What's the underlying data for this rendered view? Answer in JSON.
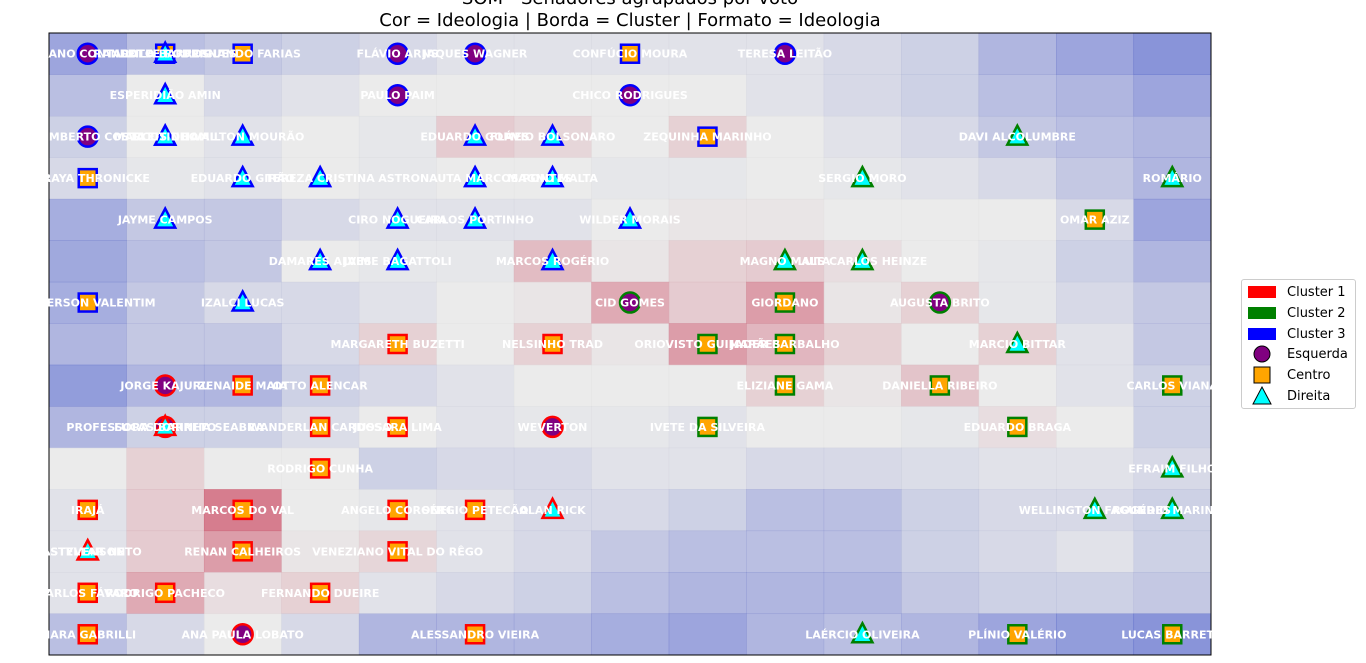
{
  "chart_data": {
    "type": "heatmap",
    "title_lines": [
      "SOM - Senadores agrupados por voto",
      "Cor = Ideologia | Borda = Cluster | Formato = Ideologia"
    ],
    "grid": {
      "cols": 15,
      "rows": 15
    },
    "heatmap_values": [
      [
        0.1,
        0.25,
        0.3,
        0.35,
        0.4,
        0.45,
        0.45,
        0.45,
        0.45,
        0.45,
        0.4,
        0.35,
        0.2,
        0.1,
        0.0
      ],
      [
        0.25,
        0.5,
        0.4,
        0.45,
        0.5,
        0.5,
        0.5,
        0.5,
        0.5,
        0.45,
        0.4,
        0.35,
        0.25,
        0.2,
        0.1
      ],
      [
        0.35,
        0.5,
        0.45,
        0.5,
        0.48,
        0.62,
        0.58,
        0.5,
        0.6,
        0.5,
        0.45,
        0.4,
        0.3,
        0.25,
        0.2
      ],
      [
        0.4,
        0.48,
        0.45,
        0.5,
        0.48,
        0.5,
        0.5,
        0.48,
        0.48,
        0.5,
        0.48,
        0.45,
        0.4,
        0.3,
        0.2
      ],
      [
        0.15,
        0.3,
        0.3,
        0.4,
        0.45,
        0.45,
        0.45,
        0.5,
        0.52,
        0.52,
        0.5,
        0.5,
        0.5,
        0.4,
        0.1
      ],
      [
        0.12,
        0.25,
        0.3,
        0.5,
        0.48,
        0.48,
        0.68,
        0.52,
        0.6,
        0.62,
        0.55,
        0.5,
        0.48,
        0.35,
        0.2
      ],
      [
        0.15,
        0.3,
        0.4,
        0.4,
        0.45,
        0.5,
        0.52,
        0.75,
        0.62,
        0.8,
        0.52,
        0.6,
        0.48,
        0.4,
        0.3
      ],
      [
        0.2,
        0.3,
        0.3,
        0.4,
        0.6,
        0.5,
        0.6,
        0.52,
        0.8,
        0.7,
        0.6,
        0.5,
        0.6,
        0.45,
        0.3
      ],
      [
        0.05,
        0.2,
        0.2,
        0.35,
        0.4,
        0.45,
        0.5,
        0.5,
        0.5,
        0.6,
        0.52,
        0.65,
        0.5,
        0.45,
        0.35
      ],
      [
        0.2,
        0.35,
        0.35,
        0.42,
        0.5,
        0.45,
        0.48,
        0.48,
        0.45,
        0.5,
        0.5,
        0.48,
        0.55,
        0.5,
        0.35
      ],
      [
        0.5,
        0.6,
        0.5,
        0.5,
        0.35,
        0.4,
        0.4,
        0.45,
        0.45,
        0.4,
        0.4,
        0.42,
        0.45,
        0.45,
        0.4
      ],
      [
        0.45,
        0.62,
        0.92,
        0.5,
        0.48,
        0.45,
        0.4,
        0.4,
        0.35,
        0.25,
        0.25,
        0.35,
        0.4,
        0.4,
        0.35
      ],
      [
        0.45,
        0.62,
        0.8,
        0.52,
        0.58,
        0.45,
        0.4,
        0.3,
        0.25,
        0.25,
        0.25,
        0.35,
        0.4,
        0.45,
        0.35
      ],
      [
        0.45,
        0.75,
        0.55,
        0.6,
        0.45,
        0.4,
        0.35,
        0.25,
        0.2,
        0.2,
        0.2,
        0.3,
        0.35,
        0.35,
        0.3
      ],
      [
        0.25,
        0.4,
        0.5,
        0.4,
        0.2,
        0.2,
        0.2,
        0.15,
        0.1,
        0.2,
        0.25,
        0.2,
        0.1,
        0.05,
        0.0
      ]
    ],
    "senators": [
      {
        "name": "FABIANO CONTARATO",
        "col": 0,
        "row": 0,
        "ideology": "Esquerda",
        "cluster": 3
      },
      {
        "name": "RANDOLFE RODRIGUES",
        "col": 1,
        "row": 0,
        "ideology": "Centro",
        "cluster": 3
      },
      {
        "name": "LEILA BARROS",
        "col": 1,
        "row": 0,
        "ideology": "Direita",
        "cluster": 3
      },
      {
        "name": "FERNANDO FARIAS",
        "col": 2,
        "row": 0,
        "ideology": "Centro",
        "cluster": 3
      },
      {
        "name": "FLÁVIO ARNS",
        "col": 4,
        "row": 0,
        "ideology": "Esquerda",
        "cluster": 3
      },
      {
        "name": "JAQUES WAGNER",
        "col": 5,
        "row": 0,
        "ideology": "Esquerda",
        "cluster": 3
      },
      {
        "name": "CONFÚCIO MOURA",
        "col": 7,
        "row": 0,
        "ideology": "Centro",
        "cluster": 3
      },
      {
        "name": "TERESA LEITÃO",
        "col": 9,
        "row": 0,
        "ideology": "Esquerda",
        "cluster": 3
      },
      {
        "name": "ESPERIDIÃO AMIN",
        "col": 1,
        "row": 1,
        "ideology": "Direita",
        "cluster": 3
      },
      {
        "name": "PAULO PAIM",
        "col": 4,
        "row": 1,
        "ideology": "Esquerda",
        "cluster": 3
      },
      {
        "name": "CHICO RODRIGUES",
        "col": 7,
        "row": 1,
        "ideology": "Esquerda",
        "cluster": 3
      },
      {
        "name": "HUMBERTO COSTA",
        "col": 0,
        "row": 2,
        "ideology": "Esquerda",
        "cluster": 3
      },
      {
        "name": "CLEITINHO",
        "col": 1,
        "row": 2,
        "ideology": "Direita",
        "cluster": 3
      },
      {
        "name": "MARCOS DO VAL",
        "col": 1,
        "row": 2,
        "ideology": "Direita",
        "cluster": 3
      },
      {
        "name": "HAMILTON MOURÃO",
        "col": 2,
        "row": 2,
        "ideology": "Direita",
        "cluster": 3
      },
      {
        "name": "EDUARDO GOMES",
        "col": 5,
        "row": 2,
        "ideology": "Direita",
        "cluster": 3
      },
      {
        "name": "FLÁVIO BOLSONARO",
        "col": 6,
        "row": 2,
        "ideology": "Direita",
        "cluster": 3
      },
      {
        "name": "ZEQUINHA MARINHO",
        "col": 8,
        "row": 2,
        "ideology": "Centro",
        "cluster": 3
      },
      {
        "name": "DAVI ALCOLUMBRE",
        "col": 12,
        "row": 2,
        "ideology": "Direita",
        "cluster": 2
      },
      {
        "name": "SORAYA THRONICKE",
        "col": 0,
        "row": 3,
        "ideology": "Centro",
        "cluster": 3
      },
      {
        "name": "EDUARDO GIRÃO",
        "col": 2,
        "row": 3,
        "ideology": "Direita",
        "cluster": 3
      },
      {
        "name": "TEREZA CRISTINA",
        "col": 3,
        "row": 3,
        "ideology": "Direita",
        "cluster": 3
      },
      {
        "name": "ASTRONAUTA MARCOS PONTES",
        "col": 5,
        "row": 3,
        "ideology": "Direita",
        "cluster": 3
      },
      {
        "name": "MAGNO MALTA",
        "col": 6,
        "row": 3,
        "ideology": "Direita",
        "cluster": 3
      },
      {
        "name": "SERGIO MORO",
        "col": 10,
        "row": 3,
        "ideology": "Direita",
        "cluster": 2
      },
      {
        "name": "ROMÁRIO",
        "col": 14,
        "row": 3,
        "ideology": "Direita",
        "cluster": 2
      },
      {
        "name": "JAYME CAMPOS",
        "col": 1,
        "row": 4,
        "ideology": "Direita",
        "cluster": 3
      },
      {
        "name": "CIRO NOGUEIRA",
        "col": 4,
        "row": 4,
        "ideology": "Direita",
        "cluster": 3
      },
      {
        "name": "CARLOS PORTINHO",
        "col": 5,
        "row": 4,
        "ideology": "Direita",
        "cluster": 3
      },
      {
        "name": "WILDER MORAIS",
        "col": 7,
        "row": 4,
        "ideology": "Direita",
        "cluster": 3
      },
      {
        "name": "OMAR AZIZ",
        "col": 13,
        "row": 4,
        "ideology": "Centro",
        "cluster": 2
      },
      {
        "name": "DAMARES ALVES",
        "col": 3,
        "row": 5,
        "ideology": "Direita",
        "cluster": 3
      },
      {
        "name": "JAIME BAGATTOLI",
        "col": 4,
        "row": 5,
        "ideology": "Direita",
        "cluster": 3
      },
      {
        "name": "MARCOS ROGÉRIO",
        "col": 6,
        "row": 5,
        "ideology": "Direita",
        "cluster": 3
      },
      {
        "name": "MAGNO MALTA",
        "col": 9,
        "row": 5,
        "ideology": "Direita",
        "cluster": 2
      },
      {
        "name": "LUIS CARLOS HEINZE",
        "col": 10,
        "row": 5,
        "ideology": "Direita",
        "cluster": 2
      },
      {
        "name": "ANDERSON VALENTIM",
        "col": 0,
        "row": 6,
        "ideology": "Centro",
        "cluster": 3
      },
      {
        "name": "IZALCI LUCAS",
        "col": 2,
        "row": 6,
        "ideology": "Direita",
        "cluster": 3
      },
      {
        "name": "CID GOMES",
        "col": 7,
        "row": 6,
        "ideology": "Esquerda",
        "cluster": 2
      },
      {
        "name": "GIORDANO",
        "col": 9,
        "row": 6,
        "ideology": "Centro",
        "cluster": 2
      },
      {
        "name": "AUGUSTA BRITO",
        "col": 11,
        "row": 6,
        "ideology": "Esquerda",
        "cluster": 2
      },
      {
        "name": "MARGARETH BUZETTI",
        "col": 4,
        "row": 7,
        "ideology": "Centro",
        "cluster": 1
      },
      {
        "name": "NELSINHO TRAD",
        "col": 6,
        "row": 7,
        "ideology": "Centro",
        "cluster": 1
      },
      {
        "name": "ORIOVISTO GUIMARÃES",
        "col": 8,
        "row": 7,
        "ideology": "Centro",
        "cluster": 2
      },
      {
        "name": "JADER BARBALHO",
        "col": 9,
        "row": 7,
        "ideology": "Centro",
        "cluster": 2
      },
      {
        "name": "MARCIO BITTAR",
        "col": 12,
        "row": 7,
        "ideology": "Direita",
        "cluster": 2
      },
      {
        "name": "JORGE KAJURU",
        "col": 1,
        "row": 8,
        "ideology": "Esquerda",
        "cluster": 1
      },
      {
        "name": "ZENAIDE MAIA",
        "col": 2,
        "row": 8,
        "ideology": "Centro",
        "cluster": 1
      },
      {
        "name": "OTTO ALENCAR",
        "col": 3,
        "row": 8,
        "ideology": "Centro",
        "cluster": 1
      },
      {
        "name": "ELIZIANE GAMA",
        "col": 9,
        "row": 8,
        "ideology": "Centro",
        "cluster": 2
      },
      {
        "name": "DANIELLA RIBEIRO",
        "col": 11,
        "row": 8,
        "ideology": "Centro",
        "cluster": 2
      },
      {
        "name": "CARLOS VIANA",
        "col": 14,
        "row": 8,
        "ideology": "Centro",
        "cluster": 2
      },
      {
        "name": "PROFESSORA DORINHA SEABRA",
        "col": 1,
        "row": 9,
        "ideology": "Esquerda",
        "cluster": 1
      },
      {
        "name": "LUCAS BARRETO",
        "col": 1,
        "row": 9,
        "ideology": "Direita",
        "cluster": 1
      },
      {
        "name": "WANDERLAN CARDOSO",
        "col": 3,
        "row": 9,
        "ideology": "Centro",
        "cluster": 1
      },
      {
        "name": "JUSSARA LIMA",
        "col": 4,
        "row": 9,
        "ideology": "Centro",
        "cluster": 1
      },
      {
        "name": "WEVERTON",
        "col": 6,
        "row": 9,
        "ideology": "Esquerda",
        "cluster": 1
      },
      {
        "name": "IVETE DA SILVEIRA",
        "col": 8,
        "row": 9,
        "ideology": "Centro",
        "cluster": 2
      },
      {
        "name": "EDUARDO BRAGA",
        "col": 12,
        "row": 9,
        "ideology": "Centro",
        "cluster": 2
      },
      {
        "name": "RODRIGO CUNHA",
        "col": 3,
        "row": 10,
        "ideology": "Centro",
        "cluster": 1
      },
      {
        "name": "EFRAIM FILHO",
        "col": 14,
        "row": 10,
        "ideology": "Direita",
        "cluster": 2
      },
      {
        "name": "IRAJÁ",
        "col": 0,
        "row": 11,
        "ideology": "Centro",
        "cluster": 1
      },
      {
        "name": "MARCOS DO VAL",
        "col": 2,
        "row": 11,
        "ideology": "Centro",
        "cluster": 1
      },
      {
        "name": "ANGELO CORONEL",
        "col": 4,
        "row": 11,
        "ideology": "Centro",
        "cluster": 1
      },
      {
        "name": "SÉRGIO PETECÃO",
        "col": 5,
        "row": 11,
        "ideology": "Centro",
        "cluster": 1
      },
      {
        "name": "ALAN RICK",
        "col": 6,
        "row": 11,
        "ideology": "Direita",
        "cluster": 1
      },
      {
        "name": "WELLINGTON FAGUNDES",
        "col": 13,
        "row": 11,
        "ideology": "Direita",
        "cluster": 2
      },
      {
        "name": "ROGÉRIO MARINHO",
        "col": 14,
        "row": 11,
        "ideology": "Direita",
        "cluster": 2
      },
      {
        "name": "CASTELLAR NETO",
        "col": 0,
        "row": 12,
        "ideology": "Direita",
        "cluster": 1
      },
      {
        "name": "STYVENSON",
        "col": 0,
        "row": 12,
        "ideology": "Direita",
        "cluster": 1
      },
      {
        "name": "RENAN CALHEIROS",
        "col": 2,
        "row": 12,
        "ideology": "Centro",
        "cluster": 1
      },
      {
        "name": "VENEZIANO VITAL DO RÊGO",
        "col": 4,
        "row": 12,
        "ideology": "Centro",
        "cluster": 1
      },
      {
        "name": "CARLOS FÁVARO",
        "col": 0,
        "row": 13,
        "ideology": "Centro",
        "cluster": 1
      },
      {
        "name": "RODRIGO PACHECO",
        "col": 1,
        "row": 13,
        "ideology": "Centro",
        "cluster": 1
      },
      {
        "name": "FERNANDO DUEIRE",
        "col": 3,
        "row": 13,
        "ideology": "Centro",
        "cluster": 1
      },
      {
        "name": "MARA GABRILLI",
        "col": 0,
        "row": 14,
        "ideology": "Centro",
        "cluster": 1
      },
      {
        "name": "ANA PAULA LOBATO",
        "col": 2,
        "row": 14,
        "ideology": "Esquerda",
        "cluster": 1
      },
      {
        "name": "ALESSANDRO VIEIRA",
        "col": 5,
        "row": 14,
        "ideology": "Centro",
        "cluster": 1
      },
      {
        "name": "LAÉRCIO OLIVEIRA",
        "col": 10,
        "row": 14,
        "ideology": "Direita",
        "cluster": 2
      },
      {
        "name": "PLÍNIO VALÉRIO",
        "col": 12,
        "row": 14,
        "ideology": "Centro",
        "cluster": 2
      },
      {
        "name": "LUCAS BARRETO",
        "col": 14,
        "row": 14,
        "ideology": "Centro",
        "cluster": 2
      }
    ],
    "legend": {
      "clusters": [
        {
          "label": "Cluster 1",
          "color": "#ff0000"
        },
        {
          "label": "Cluster 2",
          "color": "#008000"
        },
        {
          "label": "Cluster 3",
          "color": "#0000ff"
        }
      ],
      "ideologies": [
        {
          "label": "Esquerda",
          "color": "#800080",
          "shape": "circle"
        },
        {
          "label": "Centro",
          "color": "#ffa500",
          "shape": "square"
        },
        {
          "label": "Direita",
          "color": "#00ffff",
          "shape": "triangle"
        }
      ]
    }
  }
}
